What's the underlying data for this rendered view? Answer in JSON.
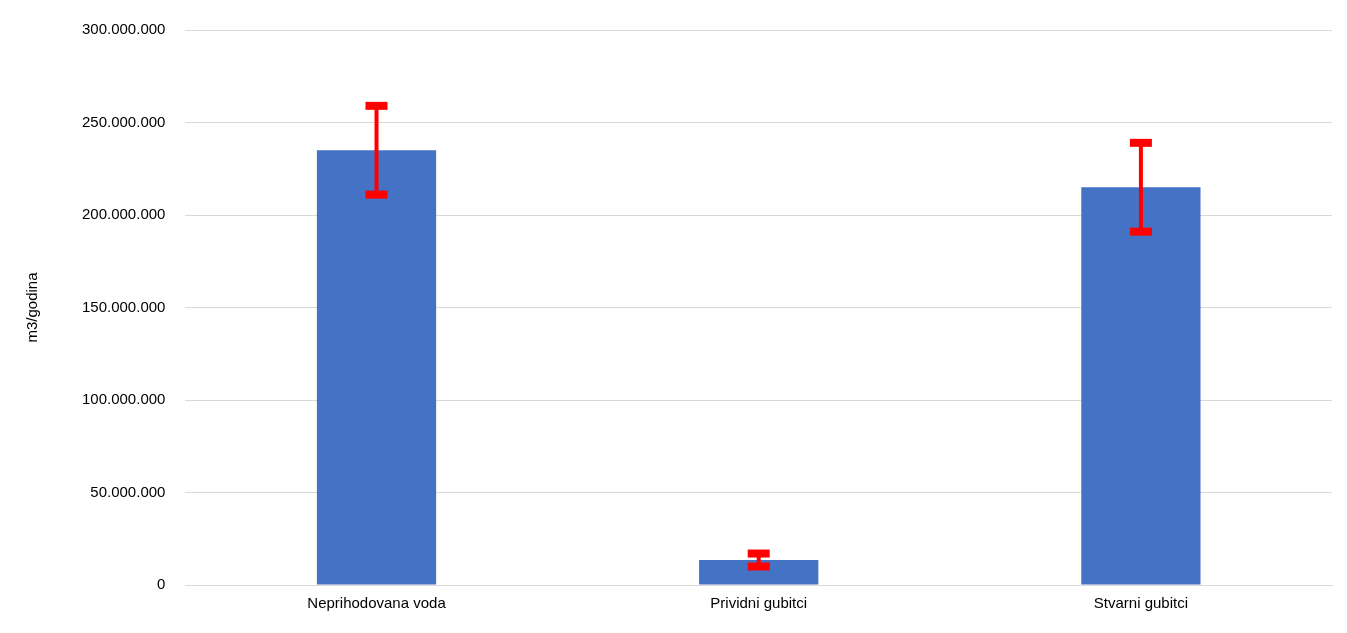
{
  "chart_data": {
    "type": "bar",
    "ylabel": "m3/godina",
    "categories": [
      "Neprihodovana voda",
      "Prividni gubitci",
      "Stvarni gubitci"
    ],
    "series": [
      {
        "color": "#4472c4",
        "values": [
          235000000,
          13500000,
          215000000
        ],
        "errors": [
          24000000,
          3500000,
          24000000
        ]
      }
    ],
    "ylim": [
      0,
      300000000
    ],
    "yticks": [
      {
        "value": 0,
        "label": "0"
      },
      {
        "value": 50000000,
        "label": "50.000.000"
      },
      {
        "value": 100000000,
        "label": "100.000.000"
      },
      {
        "value": 150000000,
        "label": "150.000.000"
      },
      {
        "value": 200000000,
        "label": "200.000.000"
      },
      {
        "value": 250000000,
        "label": "250.000.000"
      },
      {
        "value": 300000000,
        "label": "300.000.000"
      }
    ],
    "grid": "y",
    "legend": false
  }
}
